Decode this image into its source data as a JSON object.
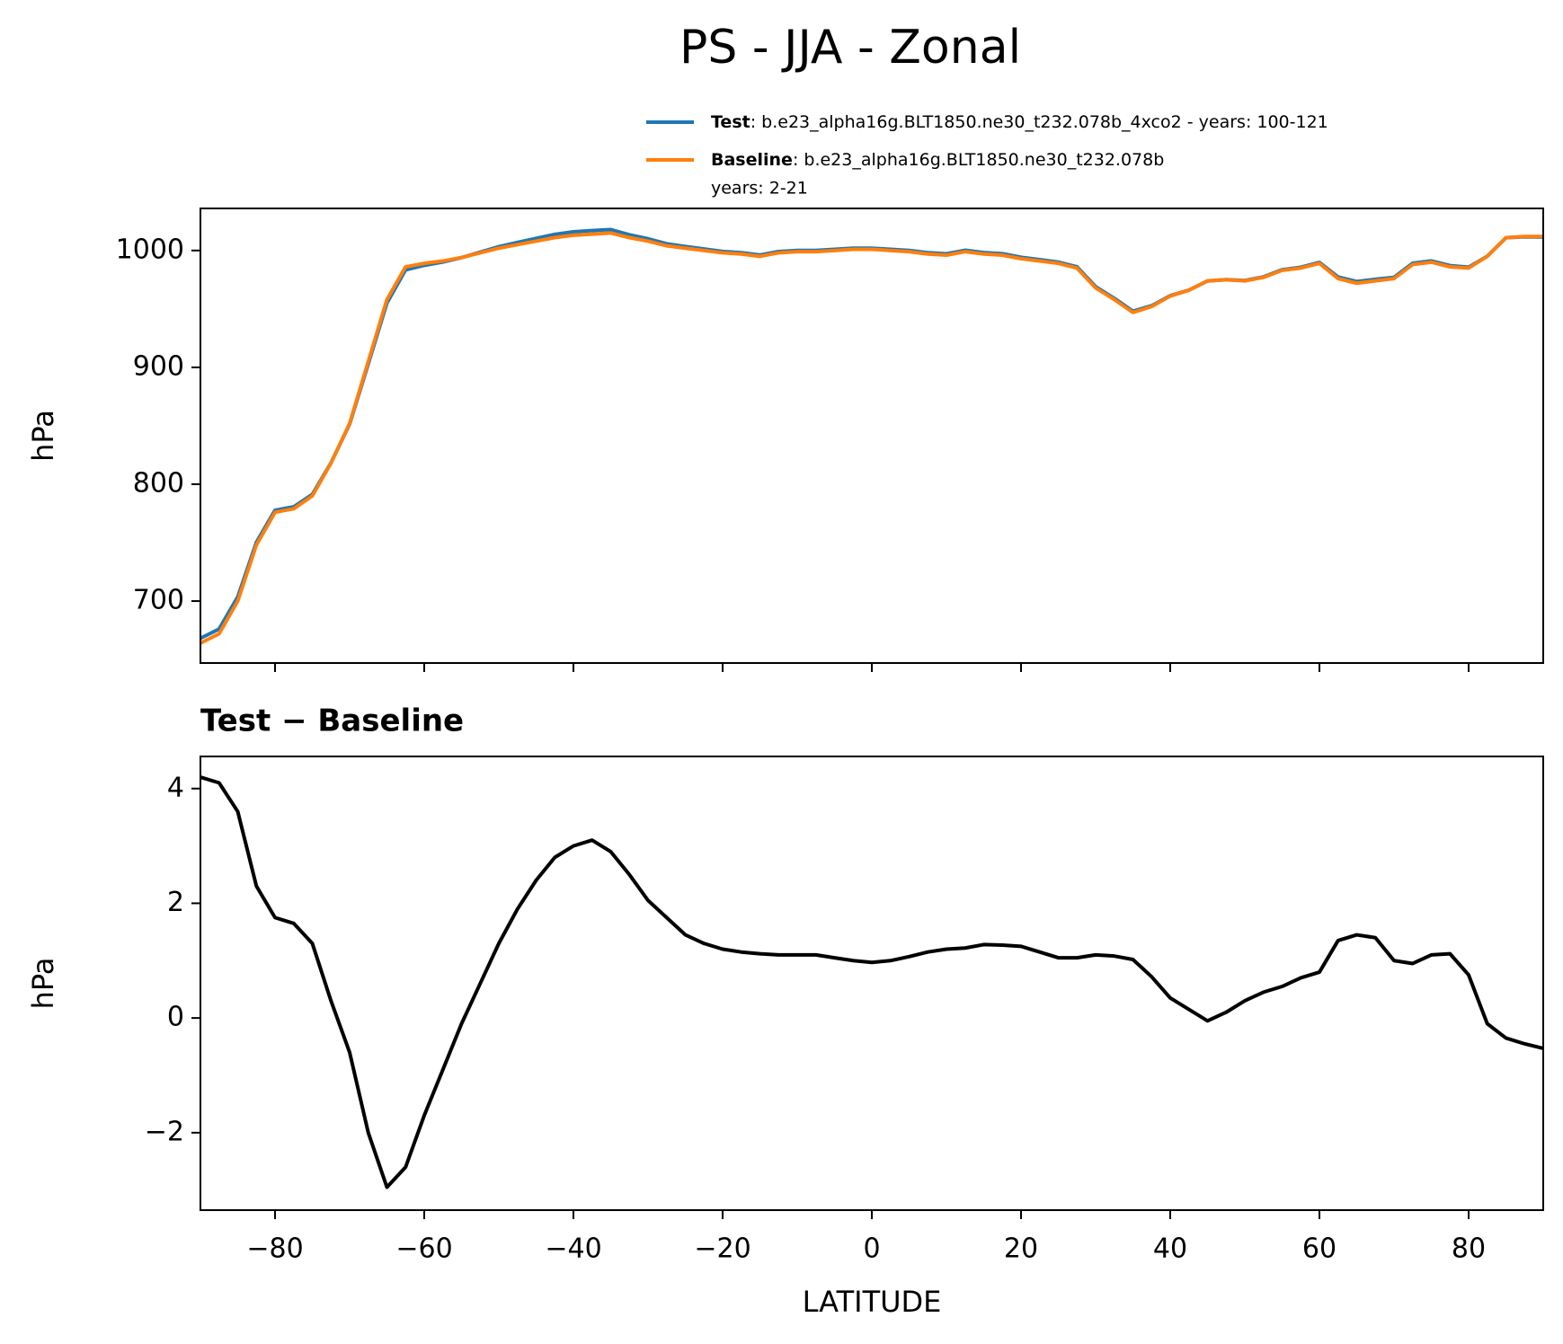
{
  "title": "PS - JJA - Zonal",
  "chart_data": [
    {
      "type": "line",
      "ylabel": "hPa",
      "xlim": [
        -90,
        90
      ],
      "ylim": [
        647,
        1036
      ],
      "xticks": [
        {
          "value": -80,
          "label": "−80"
        },
        {
          "value": -60,
          "label": "−60"
        },
        {
          "value": -40,
          "label": "−40"
        },
        {
          "value": -20,
          "label": "−20"
        },
        0,
        20,
        40,
        60,
        80
      ],
      "show_xtick_labels": false,
      "yticks": [
        700,
        800,
        900,
        1000
      ],
      "x": [
        -90,
        -87.5,
        -85,
        -82.5,
        -80,
        -77.5,
        -75,
        -72.5,
        -70,
        -67.5,
        -65,
        -62.5,
        -60,
        -57.5,
        -55,
        -52.5,
        -50,
        -47.5,
        -45,
        -42.5,
        -40,
        -37.5,
        -35,
        -32.5,
        -30,
        -27.5,
        -25,
        -22.5,
        -20,
        -17.5,
        -15,
        -12.5,
        -10,
        -7.5,
        -5,
        -2.5,
        0,
        2.5,
        5,
        7.5,
        10,
        12.5,
        15,
        17.5,
        20,
        22.5,
        25,
        27.5,
        30,
        32.5,
        35,
        37.5,
        40,
        42.5,
        45,
        47.5,
        50,
        52.5,
        55,
        57.5,
        60,
        62.5,
        65,
        67.5,
        70,
        72.5,
        75,
        77.5,
        80,
        82.5,
        85,
        87.5,
        90
      ],
      "series": [
        {
          "name": "Test",
          "description": [
            ": b.e23_alpha16g.BLT1850.ne30_t232.078b_4xco2 - years: 100-121"
          ],
          "color": "#1f77b4",
          "values": [
            668.2,
            676.1,
            703.6,
            750.3,
            777.75,
            780.65,
            791.3,
            818.3,
            851.4,
            903,
            955.05,
            983.4,
            987.3,
            990.1,
            993.9,
            998.6,
            1003.3,
            1006.9,
            1010.4,
            1013.8,
            1016,
            1017.1,
            1017.9,
            1013.5,
            1010.05,
            1005.75,
            1003.45,
            1001.3,
            999.2,
            998.15,
            996.12,
            999.1,
            1000.1,
            1000.1,
            1001.05,
            1002,
            1001.97,
            1001,
            1000.07,
            998.15,
            997.2,
            1000.22,
            998.28,
            997.27,
            994.25,
            992.15,
            990.05,
            986.05,
            969.1,
            959.08,
            948.02,
            952.72,
            961.35,
            966.15,
            973.95,
            975.1,
            974.3,
            977.45,
            983.55,
            985.7,
            989.8,
            977.35,
            973.45,
            975.4,
            977,
            989.1,
            991.1,
            987.12,
            985.75,
            995.1,
            1010.9,
            1011.65,
            1011.47
          ]
        },
        {
          "name": "Baseline",
          "description": [
            ": b.e23_alpha16g.BLT1850.ne30_t232.078b",
            "years: 2-21"
          ],
          "color": "#ff7f0e",
          "values": [
            664,
            672,
            700,
            748,
            776,
            779,
            790,
            818,
            852,
            905,
            958,
            986,
            989,
            991,
            994,
            998,
            1002,
            1005,
            1008,
            1011,
            1013,
            1014,
            1015,
            1011,
            1008,
            1004,
            1002,
            1000,
            998,
            997,
            995,
            998,
            999,
            999,
            1000,
            1001,
            1001,
            1000,
            999,
            997,
            996,
            999,
            997,
            996,
            993,
            991,
            989,
            985,
            968,
            958,
            947,
            952,
            961,
            966,
            974,
            975,
            974,
            977,
            983,
            985,
            989,
            976,
            972,
            974,
            976,
            988,
            990,
            986,
            985,
            995,
            1011,
            1012,
            1012
          ]
        }
      ]
    },
    {
      "type": "line",
      "title": "Test − Baseline",
      "ylabel": "hPa",
      "xlabel": "LATITUDE",
      "xlim": [
        -90,
        90
      ],
      "ylim": [
        -3.35,
        4.56
      ],
      "xticks": [
        {
          "value": -80,
          "label": "−80"
        },
        {
          "value": -60,
          "label": "−60"
        },
        {
          "value": -40,
          "label": "−40"
        },
        {
          "value": -20,
          "label": "−20"
        },
        0,
        20,
        40,
        60,
        80
      ],
      "show_xtick_labels": true,
      "yticks": [
        {
          "value": -2,
          "label": "−2"
        },
        0,
        2,
        4
      ],
      "x": [
        -90,
        -87.5,
        -85,
        -82.5,
        -80,
        -77.5,
        -75,
        -72.5,
        -70,
        -67.5,
        -65,
        -62.5,
        -60,
        -57.5,
        -55,
        -52.5,
        -50,
        -47.5,
        -45,
        -42.5,
        -40,
        -37.5,
        -35,
        -32.5,
        -30,
        -27.5,
        -25,
        -22.5,
        -20,
        -17.5,
        -15,
        -12.5,
        -10,
        -7.5,
        -5,
        -2.5,
        0,
        2.5,
        5,
        7.5,
        10,
        12.5,
        15,
        17.5,
        20,
        22.5,
        25,
        27.5,
        30,
        32.5,
        35,
        37.5,
        40,
        42.5,
        45,
        47.5,
        50,
        52.5,
        55,
        57.5,
        60,
        62.5,
        65,
        67.5,
        70,
        72.5,
        75,
        77.5,
        80,
        82.5,
        85,
        87.5,
        90
      ],
      "series": [
        {
          "color": "#000000",
          "values": [
            4.2,
            4.1,
            3.6,
            2.3,
            1.75,
            1.65,
            1.3,
            0.3,
            -0.6,
            -2.0,
            -2.95,
            -2.6,
            -1.7,
            -0.9,
            -0.1,
            0.6,
            1.3,
            1.9,
            2.4,
            2.8,
            3.0,
            3.1,
            2.9,
            2.5,
            2.05,
            1.75,
            1.45,
            1.3,
            1.2,
            1.15,
            1.12,
            1.1,
            1.1,
            1.1,
            1.05,
            1.0,
            0.97,
            1.0,
            1.07,
            1.15,
            1.2,
            1.22,
            1.28,
            1.27,
            1.25,
            1.15,
            1.05,
            1.05,
            1.1,
            1.08,
            1.02,
            0.72,
            0.35,
            0.15,
            -0.05,
            0.1,
            0.3,
            0.45,
            0.55,
            0.7,
            0.8,
            1.35,
            1.45,
            1.4,
            1.0,
            0.95,
            1.1,
            1.12,
            0.75,
            -0.1,
            -0.35,
            -0.45,
            -0.53
          ]
        }
      ]
    }
  ]
}
